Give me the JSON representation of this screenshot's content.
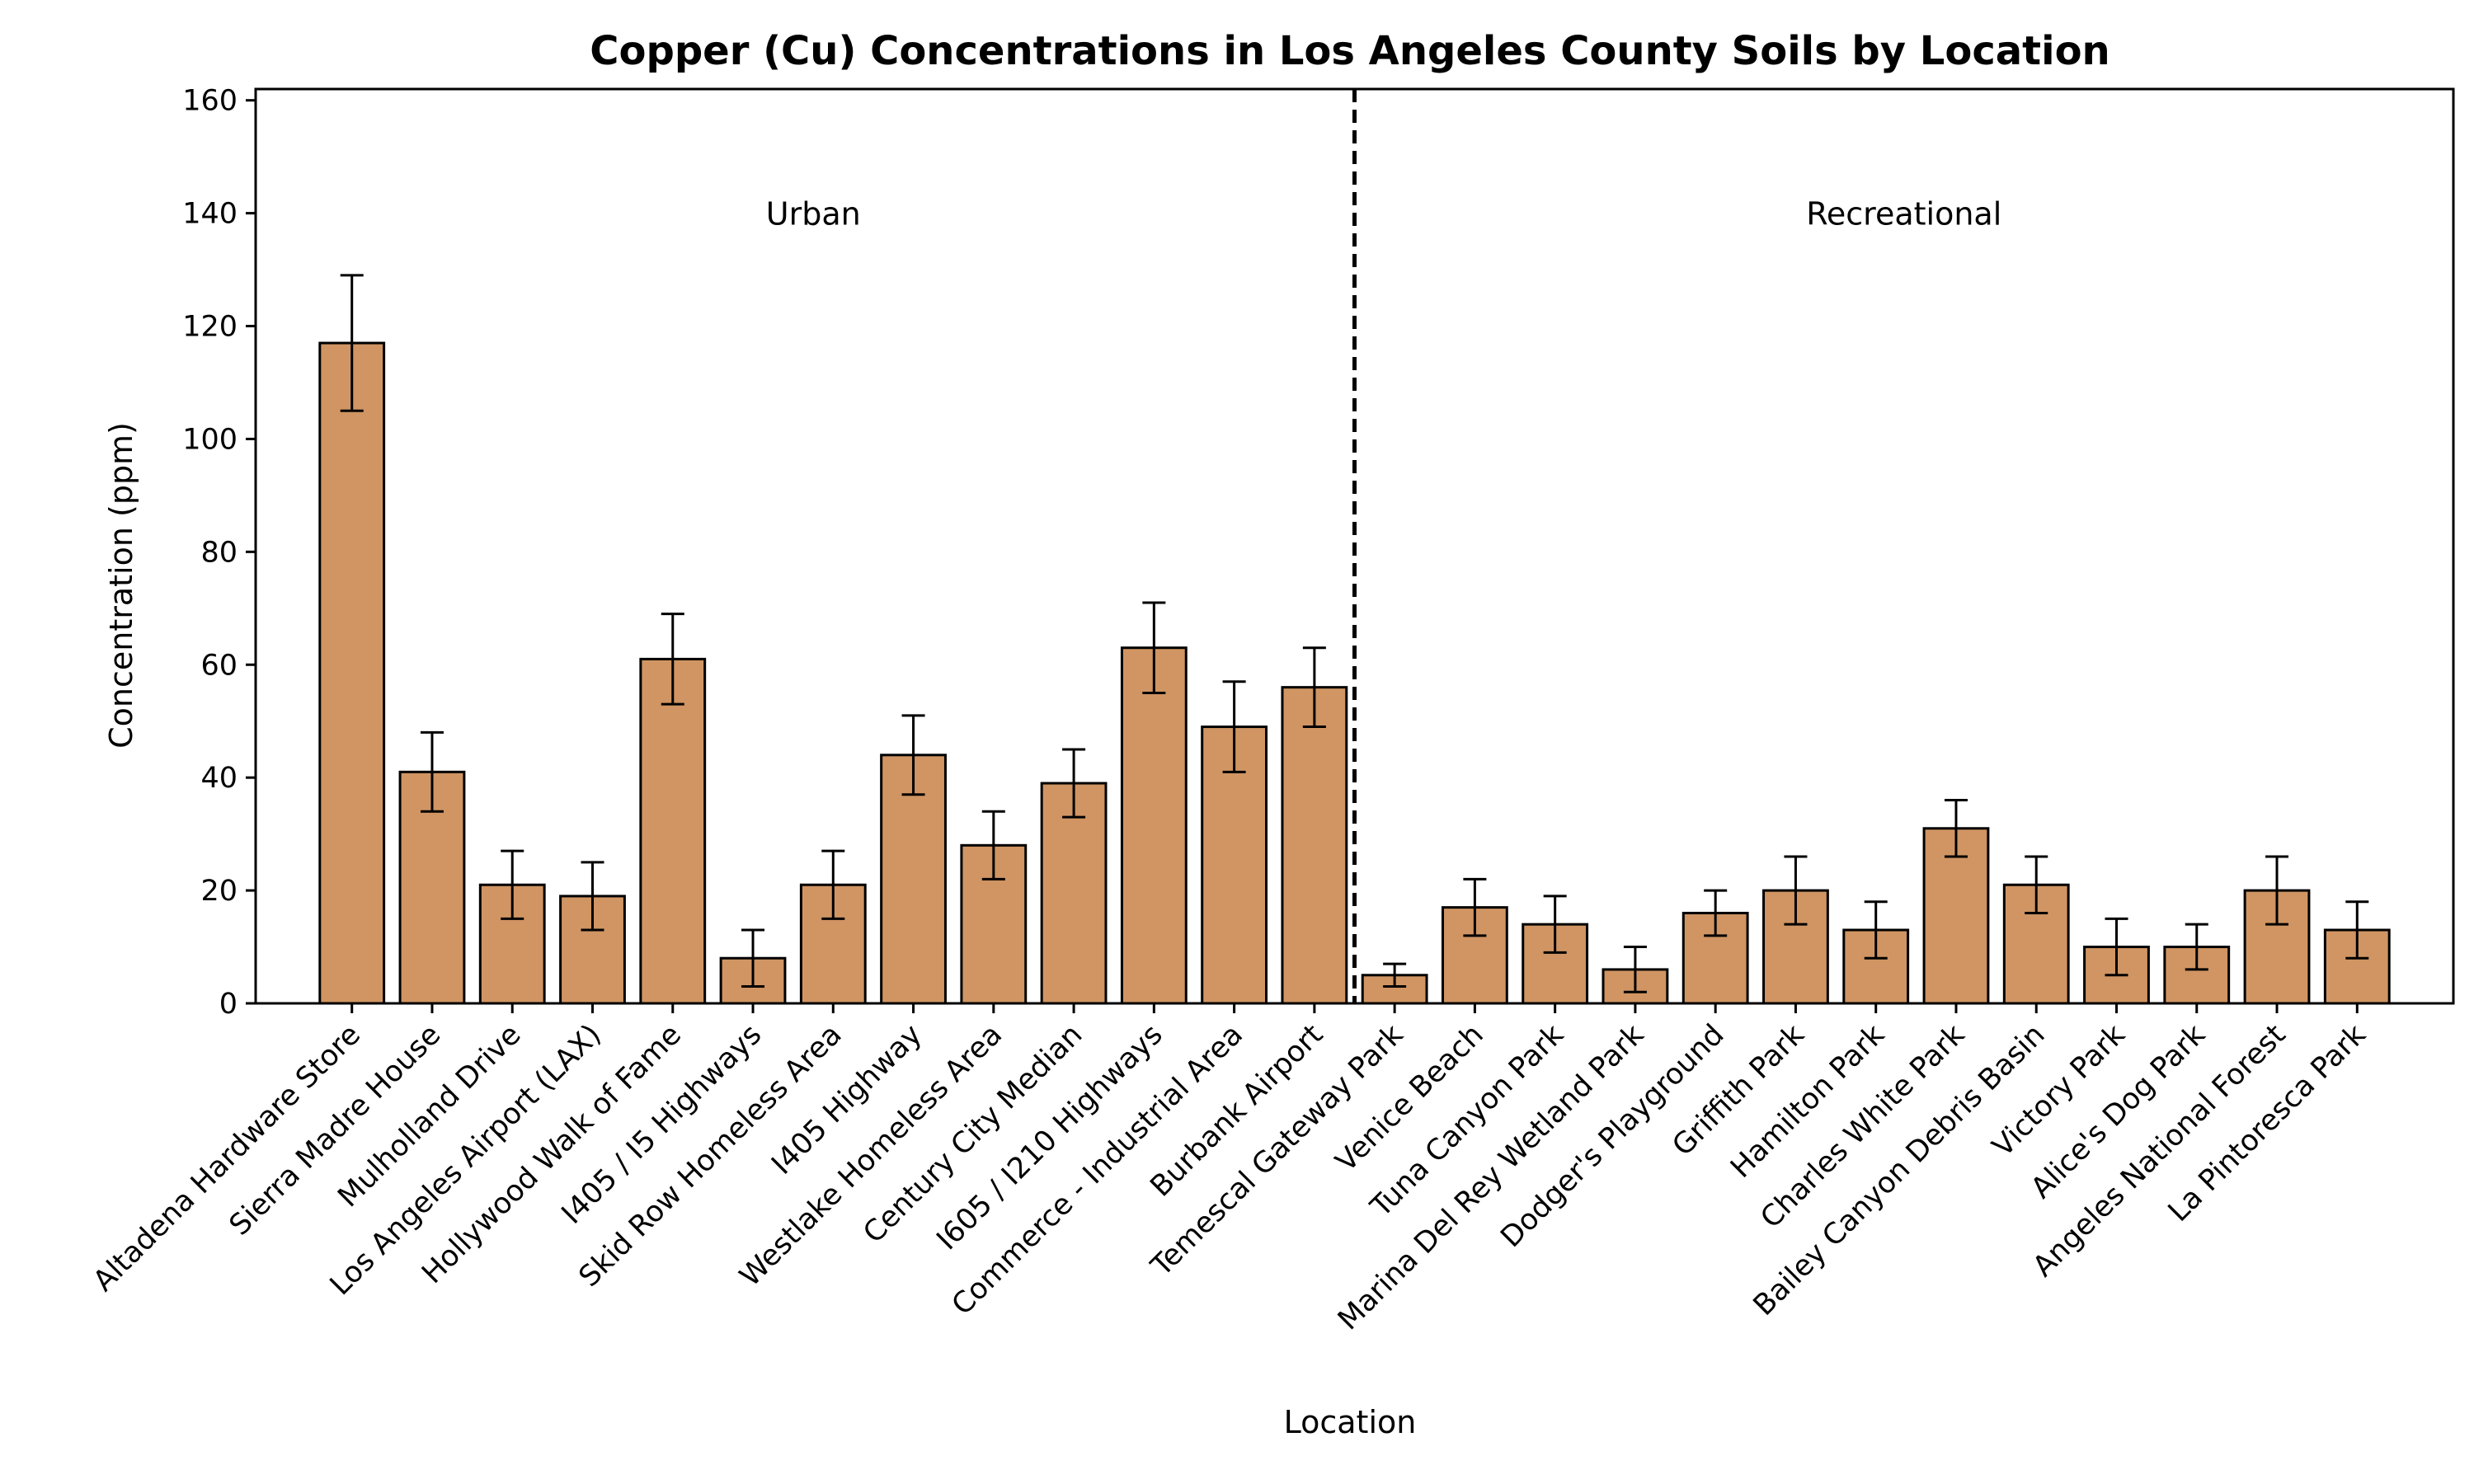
{
  "chart_data": {
    "type": "bar",
    "title": "Copper (Cu) Concentrations in Los Angeles County Soils by Location",
    "xlabel": "Location",
    "ylabel": "Concentration (ppm)",
    "ylim": [
      0,
      162
    ],
    "yticks": [
      "0",
      "20",
      "40",
      "60",
      "80",
      "100",
      "120",
      "140",
      "160"
    ],
    "grid": false,
    "bar_color": "#d09563",
    "edge_color": "#000000",
    "categories": [
      "Altadena Hardware Store",
      "Sierra Madre House",
      "Mulholland Drive",
      "Los Angeles Airport (LAX)",
      "Hollywood Walk of Fame",
      "I405 / I5 Highways",
      "Skid Row Homeless Area",
      "I405 Highway",
      "Westlake Homeless Area",
      "Century City Median",
      "I605 / I210 Highways",
      "Commerce - Industrial Area",
      "Burbank Airport",
      "Temescal Gateway Park",
      "Venice Beach",
      "Tuna Canyon Park",
      "Marina Del Rey Wetland Park",
      "Dodger's Playground",
      "Griffith Park",
      "Hamilton Park",
      "Charles White Park",
      "Bailey Canyon Debris Basin",
      "Victory Park",
      "Alice's Dog Park",
      "Angeles National Forest",
      "La Pintoresca Park"
    ],
    "values": [
      117,
      41,
      21,
      19,
      61,
      8,
      21,
      44,
      28,
      39,
      63,
      49,
      56,
      5,
      17,
      14,
      6,
      16,
      20,
      13,
      31,
      21,
      10,
      10,
      20,
      13
    ],
    "errors": [
      12,
      7,
      6,
      6,
      8,
      5,
      6,
      7,
      6,
      6,
      8,
      8,
      7,
      2,
      5,
      5,
      4,
      4,
      6,
      5,
      5,
      5,
      5,
      4,
      6,
      5
    ],
    "annotations": [
      {
        "text": "Urban",
        "group": "urban"
      },
      {
        "text": "Recreational",
        "group": "recreational"
      }
    ],
    "urban_count": 13
  }
}
